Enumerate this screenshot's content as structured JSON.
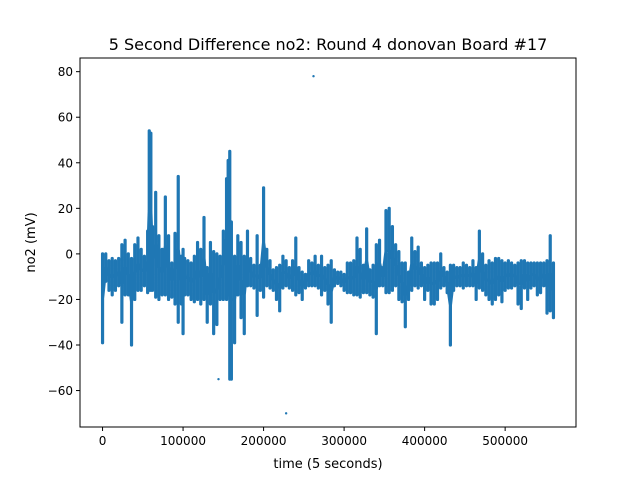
{
  "chart_data": {
    "type": "line",
    "title": "5 Second Difference no2: Round 4 donovan Board #17",
    "xlabel": "time (5 seconds)",
    "ylabel": "no2 (mV)",
    "xlim": [
      -28000,
      588000
    ],
    "ylim": [
      -76,
      86
    ],
    "xticks": [
      0,
      100000,
      200000,
      300000,
      400000,
      500000
    ],
    "yticks": [
      -60,
      -40,
      -20,
      0,
      20,
      40,
      60,
      80
    ],
    "grid": false,
    "color": "#1f77b4",
    "series": [
      {
        "x": [
          0,
          4000,
          8000,
          12000,
          16000,
          20000,
          24000,
          28000,
          32000,
          36000,
          40000,
          44000,
          48000,
          52000,
          56000,
          58000,
          60000,
          62000,
          66000,
          70000,
          74000,
          78000,
          82000,
          86000,
          90000,
          94000,
          98000,
          100000,
          102000,
          106000,
          110000,
          114000,
          118000,
          122000,
          126000,
          130000,
          134000,
          138000,
          142000,
          146000,
          150000,
          154000,
          156000,
          158000,
          160000,
          164000,
          168000,
          172000,
          176000,
          180000,
          184000,
          188000,
          192000,
          196000,
          200000,
          204000,
          208000,
          212000,
          216000,
          220000,
          224000,
          228000,
          232000,
          236000,
          240000,
          244000,
          248000,
          252000,
          256000,
          260000,
          264000,
          268000,
          272000,
          276000,
          280000,
          284000,
          288000,
          292000,
          296000,
          300000,
          304000,
          308000,
          312000,
          316000,
          320000,
          324000,
          328000,
          332000,
          336000,
          340000,
          344000,
          348000,
          352000,
          356000,
          360000,
          364000,
          368000,
          372000,
          376000,
          380000,
          384000,
          388000,
          392000,
          396000,
          400000,
          404000,
          408000,
          412000,
          416000,
          420000,
          424000,
          428000,
          432000,
          436000,
          440000,
          444000,
          448000,
          452000,
          456000,
          460000,
          464000,
          468000,
          472000,
          476000,
          480000,
          484000,
          488000,
          492000,
          496000,
          500000,
          504000,
          508000,
          512000,
          516000,
          520000,
          524000,
          528000,
          532000,
          536000,
          540000,
          544000,
          548000,
          552000,
          556000,
          560000
        ],
        "ymax": [
          0,
          0,
          -3,
          -2,
          -3,
          -2,
          4,
          6,
          0,
          -2,
          4,
          7,
          2,
          -1,
          10,
          54,
          53,
          12,
          27,
          8,
          2,
          25,
          8,
          -4,
          9,
          34,
          -1,
          2,
          -2,
          -3,
          -4,
          -1,
          5,
          2,
          16,
          -6,
          5,
          1,
          0,
          -1,
          10,
          33,
          41,
          45,
          14,
          -1,
          8,
          5,
          -1,
          10,
          -2,
          -5,
          8,
          -5,
          29,
          2,
          -3,
          -7,
          -6,
          -5,
          -1,
          -3,
          -6,
          -3,
          7,
          -6,
          -8,
          -9,
          -3,
          -4,
          -1,
          -5,
          -1,
          -6,
          -5,
          -3,
          -7,
          -8,
          -8,
          -9,
          -4,
          -4,
          -3,
          7,
          2,
          -5,
          11,
          -7,
          -5,
          4,
          6,
          -6,
          19,
          20,
          12,
          4,
          1,
          -4,
          -4,
          -8,
          7,
          1,
          3,
          -4,
          -6,
          -5,
          -4,
          -4,
          -4,
          0,
          -6,
          -8,
          -5,
          -5,
          -6,
          -6,
          -4,
          -5,
          -6,
          -3,
          -6,
          10,
          0,
          -5,
          -3,
          -4,
          -2,
          -2,
          -3,
          -4,
          -3,
          -4,
          -5,
          -4,
          -3,
          -3,
          -4,
          -4,
          -4,
          -4,
          -4,
          -4,
          -3,
          8,
          -4,
          -5,
          -6
        ],
        "ymin": [
          -39,
          -12,
          -16,
          -18,
          -16,
          -14,
          -30,
          -18,
          -18,
          -40,
          -20,
          -16,
          -16,
          -14,
          -17,
          -16,
          -16,
          -16,
          -19,
          -20,
          -18,
          -18,
          -20,
          -19,
          -22,
          -30,
          -22,
          -35,
          -18,
          -18,
          -20,
          -21,
          -20,
          -22,
          -20,
          -30,
          -22,
          -35,
          -31,
          -20,
          -20,
          -20,
          -18,
          -55,
          -55,
          -39,
          -18,
          -28,
          -35,
          -14,
          -14,
          -15,
          -27,
          -16,
          -19,
          -14,
          -15,
          -16,
          -20,
          -25,
          -15,
          -14,
          -15,
          -16,
          -18,
          -17,
          -20,
          -15,
          -14,
          -14,
          -14,
          -15,
          -18,
          -16,
          -22,
          -30,
          -14,
          -13,
          -14,
          -16,
          -17,
          -17,
          -18,
          -18,
          -19,
          -17,
          -17,
          -18,
          -19,
          -35,
          -14,
          -14,
          -17,
          -17,
          -16,
          -14,
          -20,
          -21,
          -32,
          -20,
          -16,
          -14,
          -15,
          -14,
          -20,
          -16,
          -22,
          -22,
          -20,
          -15,
          -14,
          -17,
          -40,
          -16,
          -14,
          -14,
          -15,
          -14,
          -14,
          -14,
          -20,
          -15,
          -16,
          -18,
          -20,
          -22,
          -20,
          -18,
          -21,
          -16,
          -15,
          -15,
          -14,
          -22,
          -24,
          -15,
          -20,
          -15,
          -14,
          -18,
          -17,
          -14,
          -26,
          -25,
          -28
        ]
      }
    ],
    "outliers": [
      {
        "x": 262000,
        "y": 78
      },
      {
        "x": 228000,
        "y": -70
      },
      {
        "x": 144000,
        "y": -55
      }
    ]
  }
}
